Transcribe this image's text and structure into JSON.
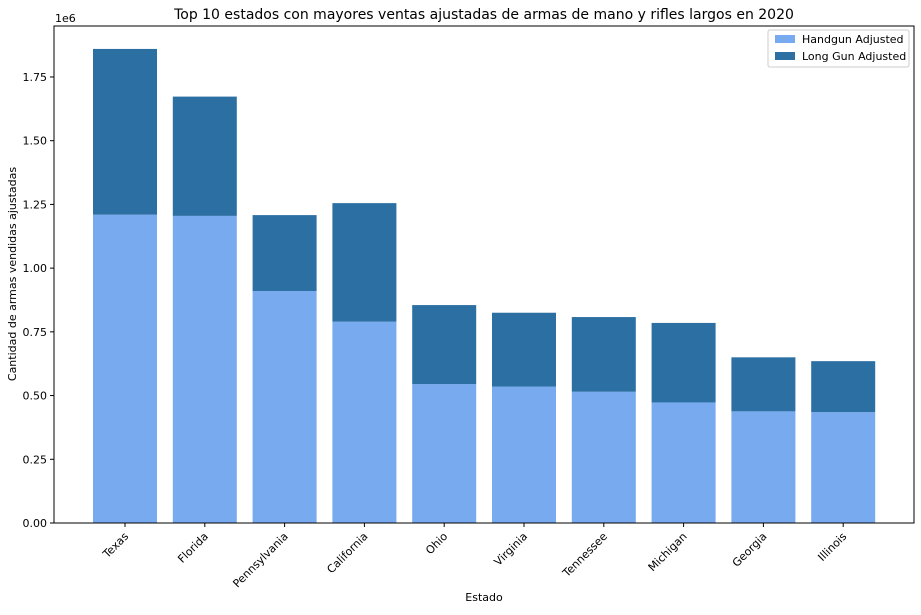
{
  "chart_data": {
    "type": "bar",
    "stacked": true,
    "title": "Top 10 estados con mayores ventas ajustadas de armas de mano y rifles largos en 2020",
    "xlabel": "Estado",
    "ylabel": "Cantidad de armas vendidas ajustadas",
    "y_offset_label": "1e6",
    "ylim": [
      0,
      1.95
    ],
    "yticks": [
      "0.00",
      "0.25",
      "0.50",
      "0.75",
      "1.00",
      "1.25",
      "1.50",
      "1.75"
    ],
    "ytick_values": [
      0,
      0.25,
      0.5,
      0.75,
      1.0,
      1.25,
      1.5,
      1.75
    ],
    "categories": [
      "Texas",
      "Florida",
      "Pennsylvania",
      "California",
      "Ohio",
      "Virginia",
      "Tennessee",
      "Michigan",
      "Georgia",
      "Illinois"
    ],
    "series": [
      {
        "name": "Handgun Adjusted",
        "color": "#78aaf0",
        "values": [
          1.21,
          1.205,
          0.91,
          0.79,
          0.545,
          0.535,
          0.515,
          0.473,
          0.438,
          0.435
        ]
      },
      {
        "name": "Long Gun Adjusted",
        "color": "#2b6fa3",
        "values": [
          0.65,
          0.468,
          0.298,
          0.465,
          0.31,
          0.29,
          0.293,
          0.312,
          0.212,
          0.2
        ]
      }
    ],
    "legend_position": "top-right",
    "grid": false
  }
}
